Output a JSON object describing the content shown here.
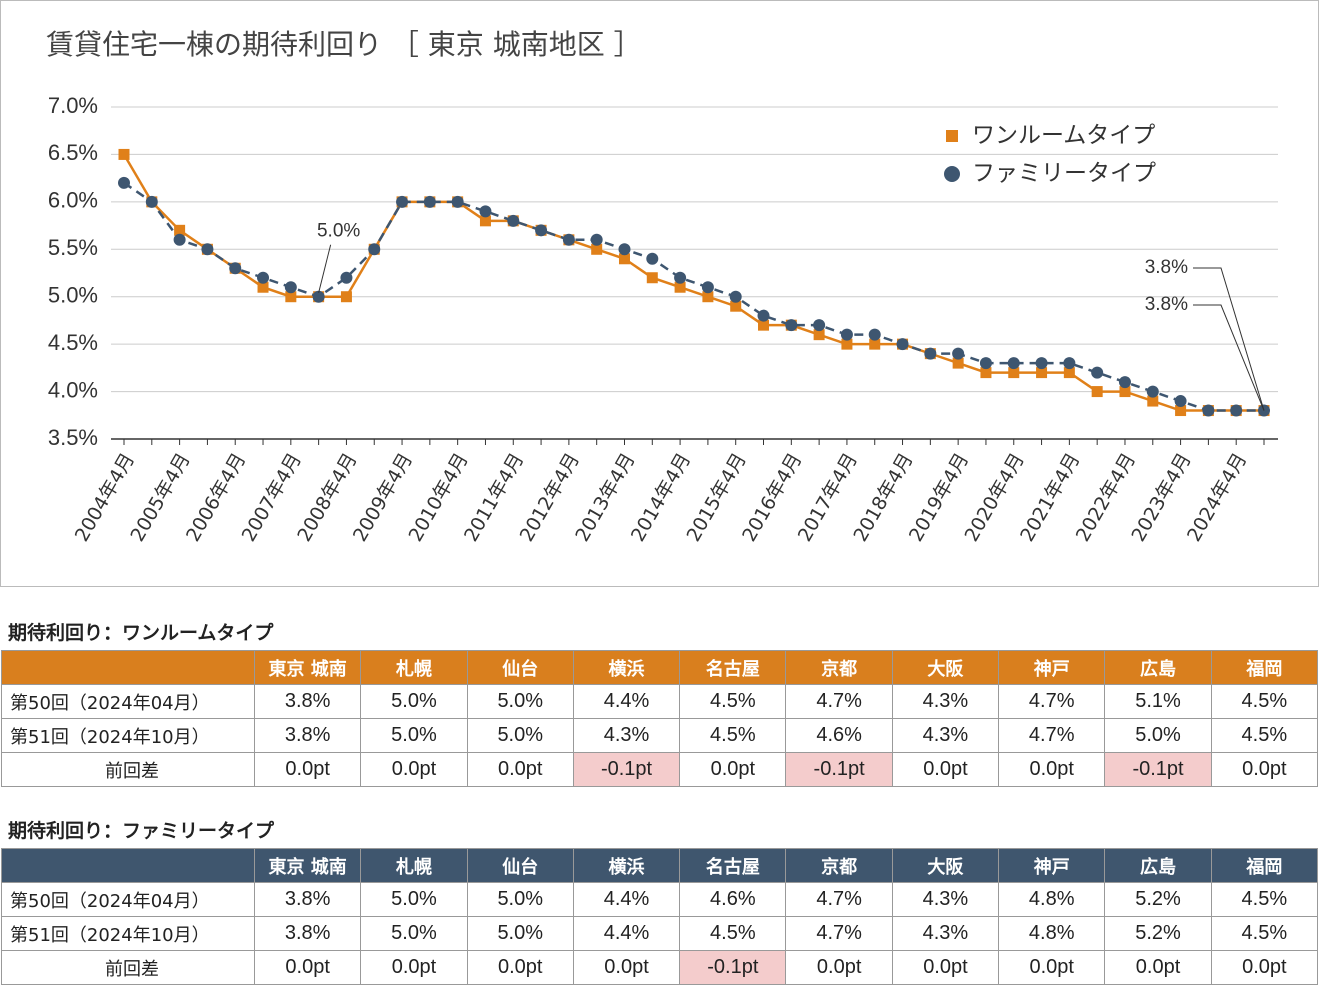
{
  "chart_data": {
    "type": "line",
    "title": "賃貸住宅一棟の期待利回り ［ 東京 城南地区 ］",
    "categories": [
      "2004年4月",
      null,
      "2005年4月",
      null,
      "2006年4月",
      null,
      "2007年4月",
      null,
      "2008年4月",
      null,
      "2009年4月",
      null,
      "2010年4月",
      null,
      "2011年4月",
      null,
      "2012年4月",
      null,
      "2013年4月",
      null,
      "2014年4月",
      null,
      "2015年4月",
      null,
      "2016年4月",
      null,
      "2017年4月",
      null,
      "2018年4月",
      null,
      "2019年4月",
      null,
      "2020年4月",
      null,
      "2021年4月",
      null,
      "2022年4月",
      null,
      "2023年4月",
      null,
      "2024年4月",
      null
    ],
    "series": [
      {
        "name": "ワンルームタイプ",
        "color": "#e08019",
        "marker": "square",
        "line_style": "solid",
        "values": [
          6.5,
          6.0,
          5.7,
          5.5,
          5.3,
          5.1,
          5.0,
          5.0,
          5.0,
          5.5,
          6.0,
          6.0,
          6.0,
          5.8,
          5.8,
          5.7,
          5.6,
          5.5,
          5.4,
          5.2,
          5.1,
          5.0,
          4.9,
          4.7,
          4.7,
          4.6,
          4.5,
          4.5,
          4.5,
          4.4,
          4.3,
          4.2,
          4.2,
          4.2,
          4.2,
          4.0,
          4.0,
          3.9,
          3.8,
          3.8,
          3.8,
          3.8
        ],
        "value_labels": [
          null,
          null,
          null,
          null,
          null,
          null,
          null,
          null,
          null,
          null,
          null,
          null,
          null,
          null,
          null,
          null,
          null,
          null,
          null,
          null,
          null,
          null,
          null,
          null,
          null,
          null,
          null,
          null,
          null,
          null,
          null,
          null,
          null,
          null,
          null,
          null,
          null,
          null,
          null,
          null,
          null,
          "3.8%"
        ]
      },
      {
        "name": "ファミリータイプ",
        "color": "#3e5670",
        "marker": "circle",
        "line_style": "dashed",
        "values": [
          6.2,
          6.0,
          5.6,
          5.5,
          5.3,
          5.2,
          5.1,
          5.0,
          5.2,
          5.5,
          6.0,
          6.0,
          6.0,
          5.9,
          5.8,
          5.7,
          5.6,
          5.6,
          5.5,
          5.4,
          5.2,
          5.1,
          5.0,
          4.8,
          4.7,
          4.7,
          4.6,
          4.6,
          4.5,
          4.4,
          4.4,
          4.3,
          4.3,
          4.3,
          4.3,
          4.2,
          4.1,
          4.0,
          3.9,
          3.8,
          3.8,
          3.8
        ],
        "value_labels": [
          null,
          null,
          null,
          null,
          null,
          null,
          null,
          "5.0%",
          null,
          null,
          null,
          null,
          null,
          null,
          null,
          null,
          null,
          null,
          null,
          null,
          null,
          null,
          null,
          null,
          null,
          null,
          null,
          null,
          null,
          null,
          null,
          null,
          null,
          null,
          null,
          null,
          null,
          null,
          null,
          null,
          null,
          "3.8%"
        ]
      }
    ],
    "ylim": [
      3.5,
      7.0
    ],
    "yticks": [
      {
        "value": 3.5,
        "label": "3.5%"
      },
      {
        "value": 4.0,
        "label": "4.0%"
      },
      {
        "value": 4.5,
        "label": "4.5%"
      },
      {
        "value": 5.0,
        "label": "5.0%"
      },
      {
        "value": 5.5,
        "label": "5.5%"
      },
      {
        "value": 6.0,
        "label": "6.0%"
      },
      {
        "value": 6.5,
        "label": "6.5%"
      },
      {
        "value": 7.0,
        "label": "7.0%"
      }
    ],
    "grid": true,
    "legend": "top-right"
  },
  "tables": [
    {
      "title": "期待利回り：ワンルームタイプ",
      "color": "#d97f1e",
      "columns": [
        "東京 城南",
        "札幌",
        "仙台",
        "横浜",
        "名古屋",
        "京都",
        "大阪",
        "神戸",
        "広島",
        "福岡"
      ],
      "rows": [
        {
          "label": "第50回（2024年04月）",
          "cells": [
            "3.8%",
            "5.0%",
            "5.0%",
            "4.4%",
            "4.5%",
            "4.7%",
            "4.3%",
            "4.7%",
            "5.1%",
            "4.5%"
          ]
        },
        {
          "label": "第51回（2024年10月）",
          "cells": [
            "3.8%",
            "5.0%",
            "5.0%",
            "4.3%",
            "4.5%",
            "4.6%",
            "4.3%",
            "4.7%",
            "5.0%",
            "4.5%"
          ]
        },
        {
          "label": "前回差",
          "cells": [
            "0.0pt",
            "0.0pt",
            "0.0pt",
            "-0.1pt",
            "0.0pt",
            "-0.1pt",
            "0.0pt",
            "0.0pt",
            "-0.1pt",
            "0.0pt"
          ]
        }
      ]
    },
    {
      "title": "期待利回り：ファミリータイプ",
      "color": "#3f566e",
      "columns": [
        "東京 城南",
        "札幌",
        "仙台",
        "横浜",
        "名古屋",
        "京都",
        "大阪",
        "神戸",
        "広島",
        "福岡"
      ],
      "rows": [
        {
          "label": "第50回（2024年04月）",
          "cells": [
            "3.8%",
            "5.0%",
            "5.0%",
            "4.4%",
            "4.6%",
            "4.7%",
            "4.3%",
            "4.8%",
            "5.2%",
            "4.5%"
          ]
        },
        {
          "label": "第51回（2024年10月）",
          "cells": [
            "3.8%",
            "5.0%",
            "5.0%",
            "4.4%",
            "4.5%",
            "4.7%",
            "4.3%",
            "4.8%",
            "5.2%",
            "4.5%"
          ]
        },
        {
          "label": "前回差",
          "cells": [
            "0.0pt",
            "0.0pt",
            "0.0pt",
            "0.0pt",
            "-0.1pt",
            "0.0pt",
            "0.0pt",
            "0.0pt",
            "0.0pt",
            "0.0pt"
          ]
        }
      ]
    }
  ]
}
